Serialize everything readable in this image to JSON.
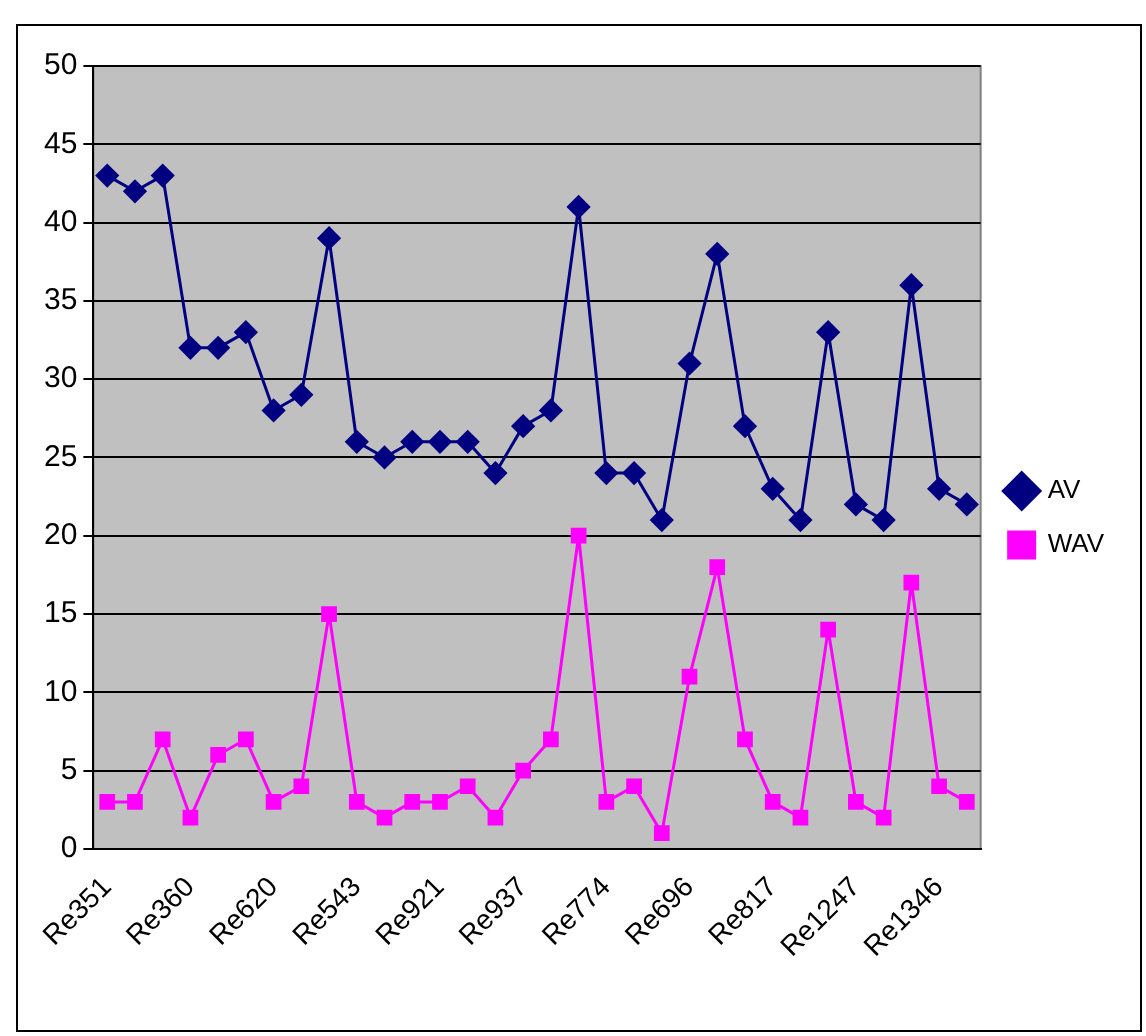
{
  "chart_data": {
    "type": "line",
    "categories": [
      "Re351",
      null,
      null,
      "Re360",
      null,
      null,
      "Re620",
      null,
      null,
      "Re543",
      null,
      null,
      "Re921",
      null,
      null,
      "Re937",
      null,
      null,
      "Re774",
      null,
      null,
      "Re696",
      null,
      null,
      "Re817",
      null,
      null,
      "Re1247",
      null,
      null,
      "Re1346",
      null
    ],
    "series": [
      {
        "name": "AV",
        "color": "#000080",
        "marker": "diamond",
        "values": [
          43,
          42,
          43,
          32,
          32,
          33,
          28,
          29,
          39,
          26,
          25,
          26,
          26,
          26,
          24,
          27,
          28,
          41,
          24,
          24,
          21,
          31,
          38,
          27,
          23,
          21,
          33,
          22,
          21,
          36,
          23,
          22
        ]
      },
      {
        "name": "WAV",
        "color": "#ff00ff",
        "marker": "square",
        "values": [
          3,
          3,
          7,
          2,
          6,
          7,
          3,
          4,
          15,
          3,
          2,
          3,
          3,
          4,
          2,
          5,
          7,
          20,
          3,
          4,
          1,
          11,
          18,
          7,
          3,
          2,
          14,
          3,
          2,
          17,
          4,
          3
        ]
      }
    ],
    "ylim": [
      0,
      50
    ],
    "yticks": [
      0,
      5,
      10,
      15,
      20,
      25,
      30,
      35,
      40,
      45,
      50
    ],
    "grid": "y",
    "legend": "right",
    "line_style": "solid"
  }
}
